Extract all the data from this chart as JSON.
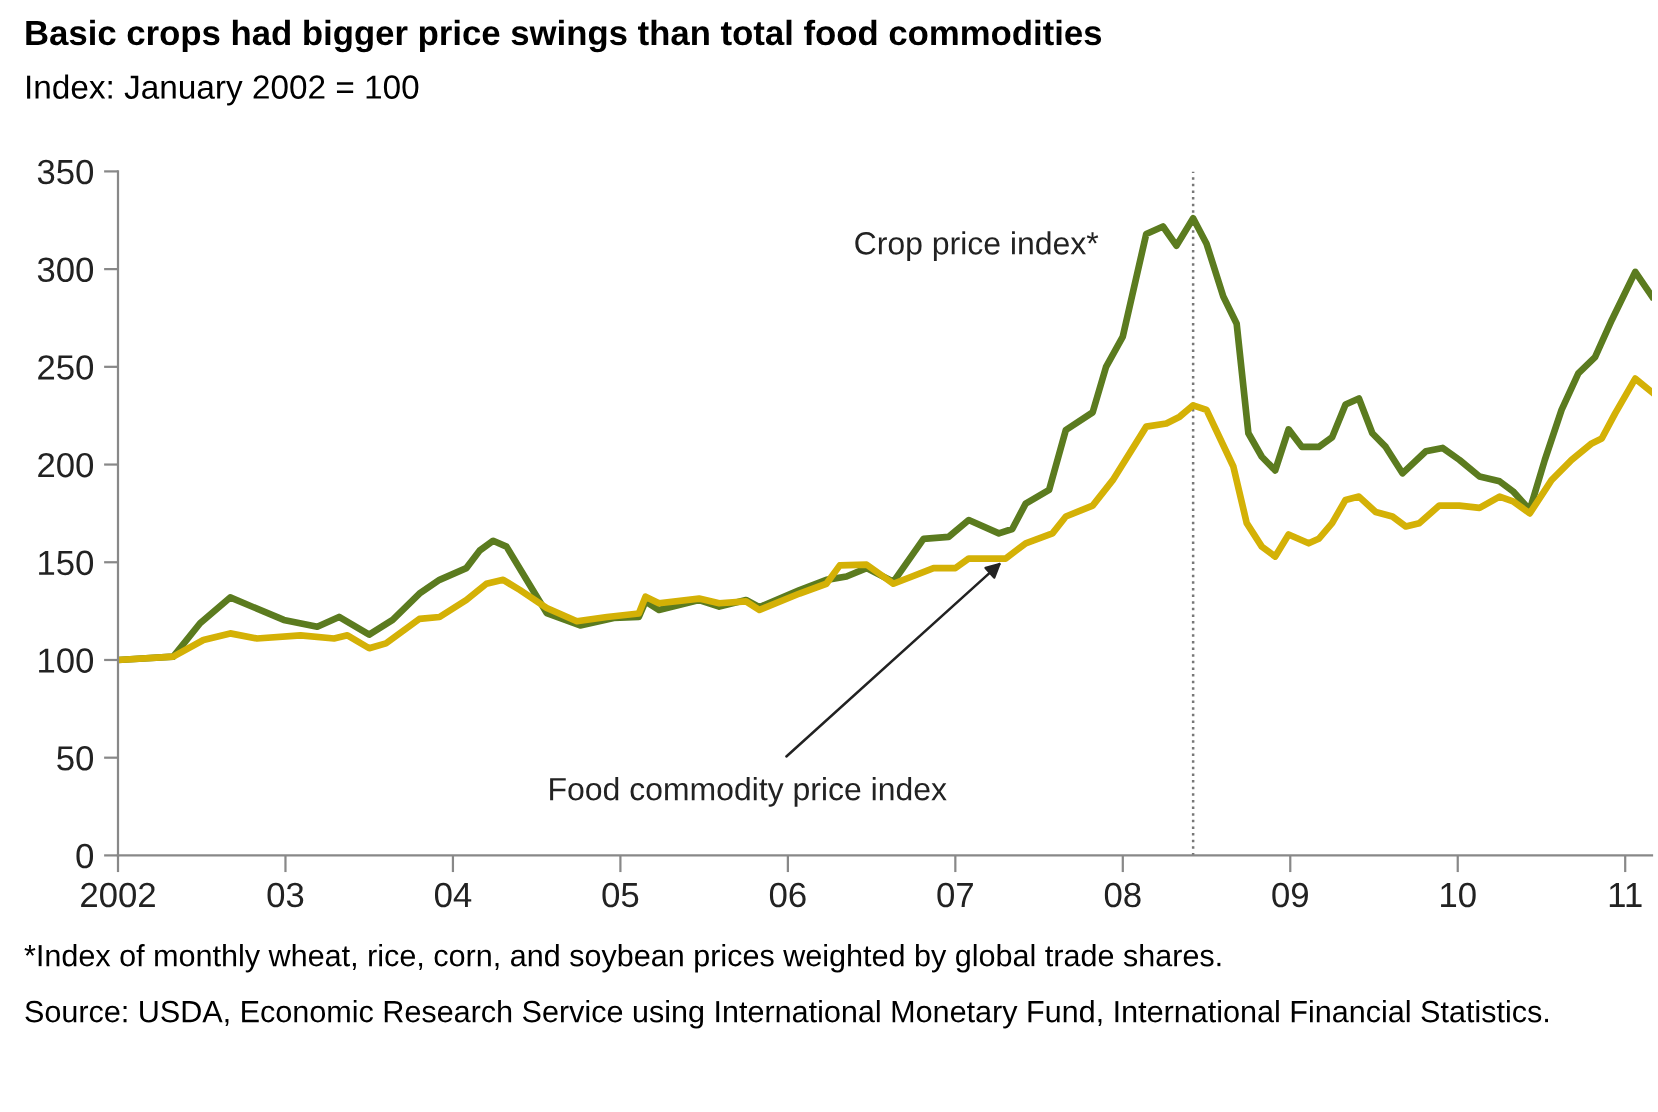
{
  "chart_data": {
    "type": "line",
    "title": "Basic crops had bigger price swings than total food commodities",
    "subtitle": "Index: January 2002 = 100",
    "series": [
      {
        "name": "Crop price index*",
        "color": "#5b7b1f",
        "x": [
          2002.0,
          2002.33,
          2002.49,
          2002.67,
          2002.99,
          2003.19,
          2003.32,
          2003.5,
          2003.64,
          2003.8,
          2003.92,
          2004.08,
          2004.16,
          2004.24,
          2004.32,
          2004.56,
          2004.76,
          2004.96,
          2005.11,
          2005.15,
          2005.23,
          2005.47,
          2005.59,
          2005.75,
          2005.83,
          2006.07,
          2006.23,
          2006.35,
          2006.47,
          2006.63,
          2006.81,
          2006.96,
          2007.08,
          2007.26,
          2007.34,
          2007.42,
          2007.56,
          2007.66,
          2007.82,
          2007.9,
          2008.0,
          2008.14,
          2008.24,
          2008.32,
          2008.42,
          2008.5,
          2008.6,
          2008.68,
          2008.75,
          2008.83,
          2008.91,
          2008.99,
          2009.07,
          2009.17,
          2009.25,
          2009.33,
          2009.41,
          2009.49,
          2009.57,
          2009.67,
          2009.81,
          2009.91,
          2010.01,
          2010.13,
          2010.25,
          2010.33,
          2010.43,
          2010.52,
          2010.62,
          2010.72,
          2010.82,
          2010.92,
          2011.06,
          2011.16
        ],
        "values": [
          100,
          101.7,
          118.8,
          132,
          120.5,
          117,
          122,
          113,
          120.5,
          134,
          141,
          147,
          156,
          161,
          158,
          124,
          117.7,
          121.5,
          122,
          130,
          125.6,
          130.7,
          127.3,
          130.7,
          127,
          135.8,
          141,
          142.7,
          147,
          140,
          162,
          163,
          171.6,
          164.8,
          167,
          180,
          187,
          217.7,
          226.7,
          250,
          265.5,
          318,
          321.8,
          312,
          326,
          313,
          286,
          272,
          216,
          204,
          197,
          218,
          209,
          209,
          214,
          230.7,
          233.8,
          216,
          209,
          195.5,
          206.8,
          208.5,
          202.4,
          193.9,
          191.4,
          186.3,
          176.8,
          202.4,
          228,
          246.7,
          255,
          274,
          298.6,
          286
        ]
      },
      {
        "color": "#d4b106",
        "x": [
          2002.0,
          2002.33,
          2002.51,
          2002.67,
          2002.83,
          2003.09,
          2003.29,
          2003.37,
          2003.5,
          2003.6,
          2003.8,
          2003.92,
          2004.08,
          2004.2,
          2004.3,
          2004.4,
          2004.56,
          2004.74,
          2004.92,
          2005.11,
          2005.15,
          2005.23,
          2005.47,
          2005.59,
          2005.75,
          2005.83,
          2006.07,
          2006.23,
          2006.31,
          2006.47,
          2006.63,
          2006.87,
          2007.0,
          2007.08,
          2007.3,
          2007.42,
          2007.58,
          2007.66,
          2007.82,
          2007.94,
          2008.14,
          2008.26,
          2008.34,
          2008.42,
          2008.5,
          2008.66,
          2008.74,
          2008.83,
          2008.91,
          2008.99,
          2009.11,
          2009.17,
          2009.25,
          2009.33,
          2009.41,
          2009.51,
          2009.61,
          2009.69,
          2009.77,
          2009.89,
          2010.01,
          2010.13,
          2010.25,
          2010.33,
          2010.43,
          2010.56,
          2010.68,
          2010.8,
          2010.86,
          2010.94,
          2011.06,
          2011.16
        ],
        "values": [
          100,
          101.7,
          110.2,
          113.6,
          111,
          112.6,
          111,
          112.6,
          106,
          108.5,
          121,
          122,
          130.7,
          139,
          141,
          135.8,
          126.6,
          119.8,
          122,
          123.8,
          132.4,
          129,
          131.4,
          129,
          130,
          125.6,
          134,
          139,
          148.4,
          148.8,
          139,
          147,
          147,
          151.9,
          151.9,
          159.7,
          164.8,
          173.4,
          179,
          192,
          219.4,
          221,
          224.5,
          230.3,
          228,
          199,
          170,
          158,
          152.9,
          164.2,
          159.7,
          162,
          170,
          181.9,
          183.6,
          175.7,
          173.4,
          168.3,
          170,
          179,
          179,
          177.8,
          183.6,
          181.2,
          175,
          192,
          202.4,
          210.8,
          213.3,
          226.2,
          244,
          237
        ]
      }
    ],
    "xlim": [
      2002,
      2011.16
    ],
    "ylim": [
      0,
      350
    ],
    "xticks": [
      {
        "value": 2002,
        "label": "2002"
      },
      {
        "value": 2003,
        "label": "03"
      },
      {
        "value": 2004,
        "label": "04"
      },
      {
        "value": 2005,
        "label": "05"
      },
      {
        "value": 2006,
        "label": "06"
      },
      {
        "value": 2007,
        "label": "07"
      },
      {
        "value": 2008,
        "label": "08"
      },
      {
        "value": 2009,
        "label": "09"
      },
      {
        "value": 2010,
        "label": "10"
      },
      {
        "value": 2011,
        "label": "11"
      }
    ],
    "yticks": [
      0,
      50,
      100,
      150,
      200,
      250,
      300,
      350
    ],
    "ref_lines": [
      {
        "axis": "x",
        "value": 2008.42,
        "color": "#777777",
        "line_style": "dotted"
      }
    ],
    "annotations": [
      {
        "text": "Food commodity price index",
        "x": 2007.3,
        "y": 151.9
      },
      "*Index of monthly wheat, rice, corn, and soybean prices weighted by global trade shares.",
      "Source: USDA, Economic Research Service using International Monetary Fund, International Financial Statistics."
    ],
    "grid": false,
    "legend": false,
    "marker": "none",
    "line_style": "solid"
  }
}
